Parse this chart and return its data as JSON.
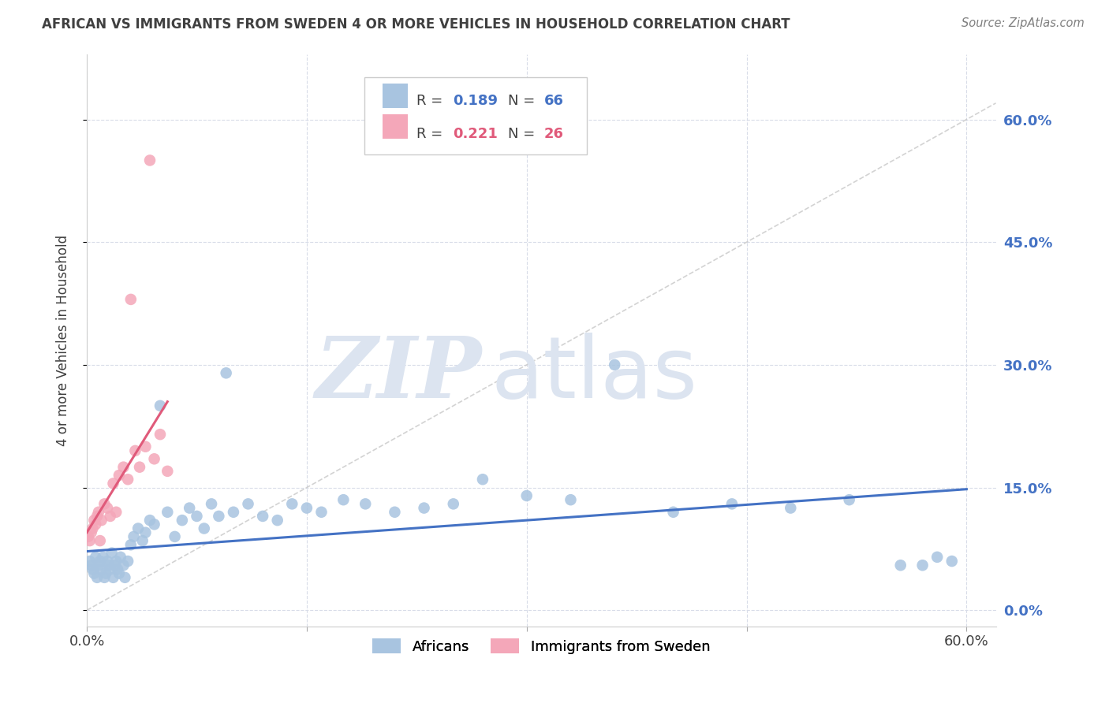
{
  "title": "AFRICAN VS IMMIGRANTS FROM SWEDEN 4 OR MORE VEHICLES IN HOUSEHOLD CORRELATION CHART",
  "source": "Source: ZipAtlas.com",
  "ylabel": "4 or more Vehicles in Household",
  "xlim": [
    0.0,
    0.62
  ],
  "ylim": [
    -0.02,
    0.68
  ],
  "yticks": [
    0.0,
    0.15,
    0.3,
    0.45,
    0.6
  ],
  "ytick_labels": [
    "0.0%",
    "15.0%",
    "30.0%",
    "45.0%",
    "60.0%"
  ],
  "xtick_positions": [
    0.0,
    0.15,
    0.3,
    0.45,
    0.6
  ],
  "xtick_labels_show": [
    "0.0%",
    "",
    "",
    "",
    "60.0%"
  ],
  "legend_blue_R": "R = ",
  "legend_blue_Rval": "0.189",
  "legend_blue_N": "N = ",
  "legend_blue_Nval": "66",
  "legend_pink_R": "R = ",
  "legend_pink_Rval": "0.221",
  "legend_pink_N": "N = ",
  "legend_pink_Nval": "26",
  "blue_color": "#a8c4e0",
  "pink_color": "#f4a7b9",
  "blue_line_color": "#4472c4",
  "pink_line_color": "#e05a7a",
  "ref_line_color": "#c8c8c8",
  "grid_color": "#d8dce8",
  "title_color": "#404040",
  "source_color": "#808080",
  "right_tick_color": "#4472c4",
  "watermark_zip_color": "#dce4f0",
  "watermark_atlas_color": "#dce4f0",
  "africans_x": [
    0.002,
    0.003,
    0.004,
    0.005,
    0.006,
    0.007,
    0.008,
    0.009,
    0.01,
    0.011,
    0.012,
    0.013,
    0.014,
    0.015,
    0.016,
    0.017,
    0.018,
    0.019,
    0.02,
    0.021,
    0.022,
    0.023,
    0.025,
    0.026,
    0.028,
    0.03,
    0.032,
    0.035,
    0.038,
    0.04,
    0.043,
    0.046,
    0.05,
    0.055,
    0.06,
    0.065,
    0.07,
    0.075,
    0.08,
    0.085,
    0.09,
    0.095,
    0.1,
    0.11,
    0.12,
    0.13,
    0.14,
    0.15,
    0.16,
    0.175,
    0.19,
    0.21,
    0.23,
    0.25,
    0.27,
    0.3,
    0.33,
    0.36,
    0.4,
    0.44,
    0.48,
    0.52,
    0.555,
    0.57,
    0.58,
    0.59
  ],
  "africans_y": [
    0.06,
    0.055,
    0.05,
    0.045,
    0.065,
    0.04,
    0.055,
    0.06,
    0.05,
    0.065,
    0.04,
    0.045,
    0.06,
    0.055,
    0.05,
    0.07,
    0.04,
    0.055,
    0.06,
    0.05,
    0.045,
    0.065,
    0.055,
    0.04,
    0.06,
    0.08,
    0.09,
    0.1,
    0.085,
    0.095,
    0.11,
    0.105,
    0.25,
    0.12,
    0.09,
    0.11,
    0.125,
    0.115,
    0.1,
    0.13,
    0.115,
    0.29,
    0.12,
    0.13,
    0.115,
    0.11,
    0.13,
    0.125,
    0.12,
    0.135,
    0.13,
    0.12,
    0.125,
    0.13,
    0.16,
    0.14,
    0.135,
    0.3,
    0.12,
    0.13,
    0.125,
    0.135,
    0.055,
    0.055,
    0.065,
    0.06
  ],
  "sweden_x": [
    0.001,
    0.002,
    0.003,
    0.004,
    0.005,
    0.006,
    0.007,
    0.008,
    0.009,
    0.01,
    0.012,
    0.014,
    0.016,
    0.018,
    0.02,
    0.022,
    0.025,
    0.028,
    0.03,
    0.033,
    0.036,
    0.04,
    0.043,
    0.046,
    0.05,
    0.055
  ],
  "sweden_y": [
    0.09,
    0.085,
    0.095,
    0.1,
    0.11,
    0.105,
    0.115,
    0.12,
    0.085,
    0.11,
    0.13,
    0.125,
    0.115,
    0.155,
    0.12,
    0.165,
    0.175,
    0.16,
    0.38,
    0.195,
    0.175,
    0.2,
    0.55,
    0.185,
    0.215,
    0.17
  ],
  "blue_trendline_x": [
    0.0,
    0.6
  ],
  "blue_trendline_y": [
    0.072,
    0.148
  ],
  "pink_trendline_x": [
    0.0,
    0.055
  ],
  "pink_trendline_y": [
    0.095,
    0.255
  ]
}
